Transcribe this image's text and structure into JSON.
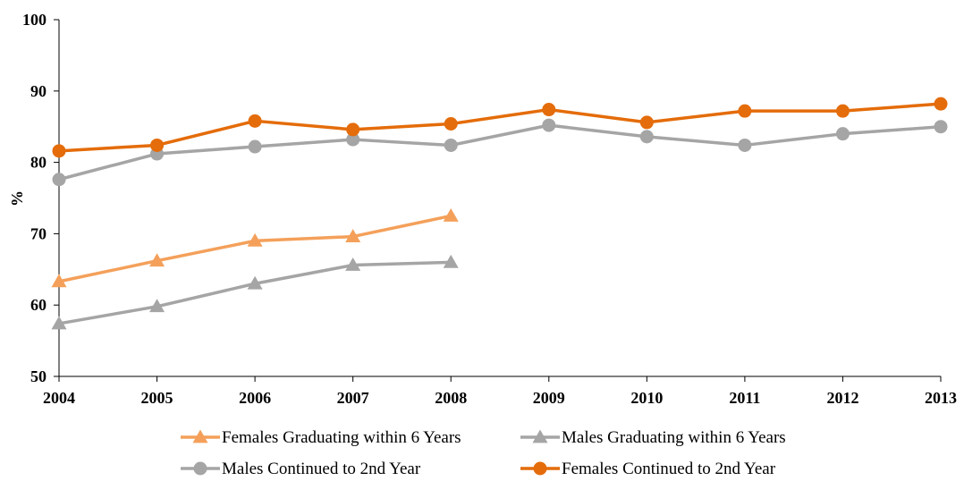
{
  "chart_data": {
    "type": "line",
    "title": "",
    "xlabel": "",
    "ylabel": "%",
    "ylim": [
      50,
      100
    ],
    "yticks": [
      "50",
      "60",
      "70",
      "80",
      "90",
      "100"
    ],
    "categories": [
      "2004",
      "2005",
      "2006",
      "2007",
      "2008",
      "2009",
      "2010",
      "2011",
      "2012",
      "2013"
    ],
    "grid": false,
    "legend_position": "bottom",
    "series": [
      {
        "name": "Females Graduating within 6 Years",
        "color": "#F4A05A",
        "marker": "triangle",
        "values": [
          63.3,
          66.2,
          69.0,
          69.6,
          72.5,
          null,
          null,
          null,
          null,
          null
        ]
      },
      {
        "name": "Males Graduating within 6 Years",
        "color": "#A5A5A5",
        "marker": "triangle",
        "values": [
          57.4,
          59.8,
          63.0,
          65.6,
          66.0,
          null,
          null,
          null,
          null,
          null
        ]
      },
      {
        "name": "Males Continued to 2nd Year",
        "color": "#A5A5A5",
        "marker": "circle",
        "values": [
          77.6,
          81.2,
          82.2,
          83.2,
          82.4,
          85.2,
          83.6,
          82.4,
          84.0,
          85.0
        ]
      },
      {
        "name": "Females Continued to 2nd Year",
        "color": "#E46C0A",
        "marker": "circle",
        "values": [
          81.6,
          82.4,
          85.8,
          84.6,
          85.4,
          87.4,
          85.6,
          87.2,
          87.2,
          88.2
        ]
      }
    ]
  }
}
